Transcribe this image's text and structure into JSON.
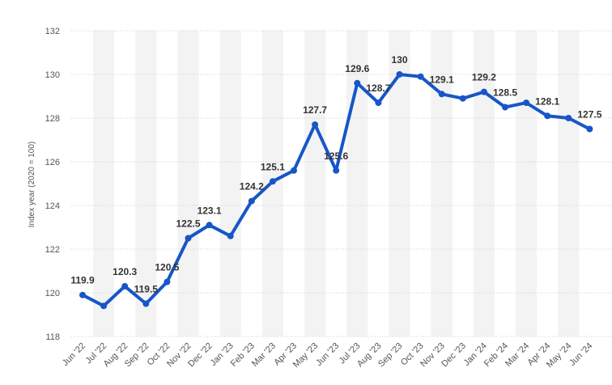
{
  "colors": {
    "line": "#1756c8",
    "gridline": "#cfcfcf",
    "band": "#f3f3f3",
    "text": "#555555",
    "label": "#333333"
  },
  "chart_data": {
    "type": "line",
    "title": "",
    "xlabel": "",
    "ylabel": "Index year (2020 = 100)",
    "ylim": [
      118,
      132
    ],
    "yticks": [
      118,
      120,
      122,
      124,
      126,
      128,
      130,
      132
    ],
    "grid": true,
    "categories": [
      "Jun '22",
      "Jul '22",
      "Aug '22",
      "Sep '22",
      "Oct '22",
      "Nov '22",
      "Dec '22",
      "Jan '23",
      "Feb '23",
      "Mar '23",
      "Apr '23",
      "May '23",
      "Jun '23",
      "Jul '23",
      "Aug '23",
      "Sep '23",
      "Oct '23",
      "Nov '23",
      "Dec '23",
      "Jan '24",
      "Feb '24",
      "Mar '24",
      "Apr '24",
      "May '24",
      "Jun '24"
    ],
    "values": [
      119.9,
      119.4,
      120.3,
      119.5,
      120.5,
      122.5,
      123.1,
      122.6,
      124.2,
      125.1,
      125.6,
      127.7,
      125.6,
      129.6,
      128.7,
      130,
      129.9,
      129.1,
      128.9,
      129.2,
      128.5,
      128.7,
      128.1,
      128,
      127.5
    ],
    "data_labels": [
      {
        "index": 0,
        "text": "119.9"
      },
      {
        "index": 2,
        "text": "120.3"
      },
      {
        "index": 3,
        "text": "119.5"
      },
      {
        "index": 4,
        "text": "120.5"
      },
      {
        "index": 5,
        "text": "122.5"
      },
      {
        "index": 6,
        "text": "123.1"
      },
      {
        "index": 8,
        "text": "124.2"
      },
      {
        "index": 9,
        "text": "125.1"
      },
      {
        "index": 11,
        "text": "127.7"
      },
      {
        "index": 12,
        "text": "125.6"
      },
      {
        "index": 13,
        "text": "129.6"
      },
      {
        "index": 14,
        "text": "128.7"
      },
      {
        "index": 15,
        "text": "130"
      },
      {
        "index": 17,
        "text": "129.1"
      },
      {
        "index": 19,
        "text": "129.2"
      },
      {
        "index": 20,
        "text": "128.5"
      },
      {
        "index": 22,
        "text": "128.1"
      },
      {
        "index": 24,
        "text": "127.5"
      }
    ]
  }
}
